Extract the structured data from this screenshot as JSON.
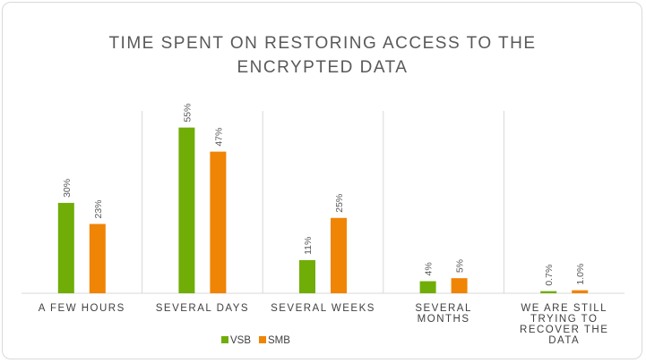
{
  "chart_data": {
    "type": "bar",
    "title": [
      "TIME SPENT ON RESTORING ACCESS TO THE",
      "ENCRYPTED DATA"
    ],
    "categories": [
      [
        "A FEW HOURS"
      ],
      [
        "SEVERAL DAYS"
      ],
      [
        "SEVERAL WEEKS"
      ],
      [
        "SEVERAL",
        "MONTHS"
      ],
      [
        "WE ARE STILL",
        "TRYING TO",
        "RECOVER THE",
        "DATA"
      ]
    ],
    "series": [
      {
        "name": "VSB",
        "color": "#70ad07",
        "values": [
          30,
          55,
          11,
          4,
          0.7
        ],
        "labels": [
          "30%",
          "55%",
          "11%",
          "4%",
          "0.7%"
        ]
      },
      {
        "name": "SMB",
        "color": "#ef8405",
        "values": [
          23,
          47,
          25,
          5,
          1.0
        ],
        "labels": [
          "23%",
          "47%",
          "25%",
          "5%",
          "1.0%"
        ]
      }
    ],
    "ylim": [
      0,
      60
    ],
    "grid": false,
    "legend_position": "bottom-center"
  }
}
